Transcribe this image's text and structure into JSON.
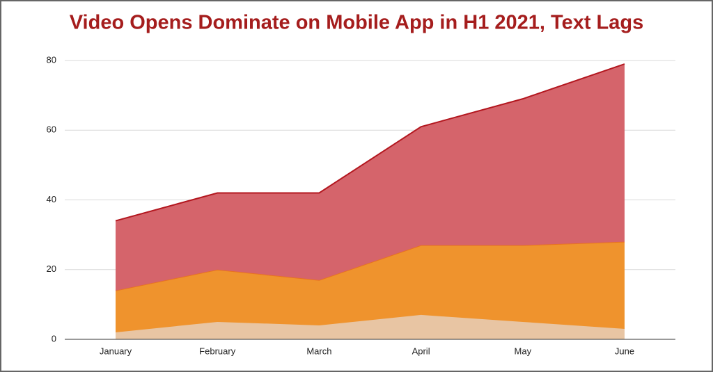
{
  "chart_data": {
    "type": "stacked-area",
    "title": "Video Opens Dominate on Mobile App in H1 2021, Text Lags",
    "categories": [
      "January",
      "February",
      "March",
      "April",
      "May",
      "June"
    ],
    "series": [
      {
        "color": "#e8c5a3",
        "edge": "#e8c5a3",
        "values": [
          2,
          5,
          4,
          7,
          5,
          3
        ]
      },
      {
        "color": "#ef932d",
        "edge": "#e8731f",
        "values": [
          12,
          15,
          13,
          20,
          22,
          25
        ]
      },
      {
        "color": "#d5646b",
        "edge": "#b3171f",
        "values": [
          20,
          22,
          25,
          34,
          42,
          51
        ]
      }
    ],
    "ylim": [
      0,
      80
    ],
    "yticks": [
      0,
      20,
      40,
      60,
      80
    ],
    "grid": true
  }
}
